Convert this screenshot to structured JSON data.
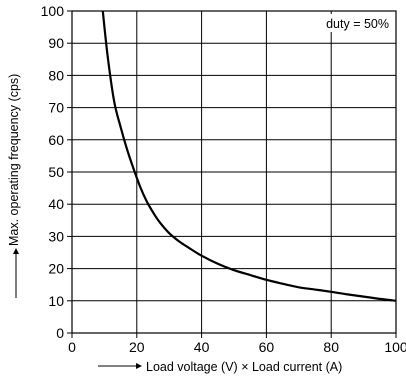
{
  "chart_data": {
    "type": "line",
    "title": "",
    "xlabel": "Load voltage (V) × Load current (A)",
    "ylabel": "Max. operating frequency (cps)",
    "xlim": [
      0,
      100
    ],
    "ylim": [
      0,
      100
    ],
    "x_ticks": [
      0,
      20,
      40,
      60,
      80,
      100
    ],
    "y_ticks": [
      0,
      10,
      20,
      30,
      40,
      50,
      60,
      70,
      80,
      90,
      100
    ],
    "x_tick_labels": [
      "0",
      "20",
      "40",
      "60",
      "80",
      "100"
    ],
    "y_tick_labels": [
      "0",
      "10",
      "20",
      "30",
      "40",
      "50",
      "60",
      "70",
      "80",
      "90",
      "100"
    ],
    "grid": true,
    "annotation": "duty = 50%",
    "annotation_position": "top-right",
    "line_color": "#000000",
    "series": [
      {
        "x": [
          9.5,
          11,
          13,
          15,
          17,
          19,
          21,
          23,
          25,
          27,
          30,
          33,
          36,
          40,
          45,
          50,
          55,
          60,
          65,
          70,
          75,
          80,
          85,
          90,
          95,
          100
        ],
        "values": [
          100,
          86,
          72,
          64,
          57,
          51,
          45.5,
          41,
          37.5,
          34.5,
          31,
          28.5,
          26.5,
          24,
          21.5,
          19.5,
          18,
          16.5,
          15.3,
          14.2,
          13.5,
          12.8,
          12,
          11.3,
          10.6,
          10
        ]
      }
    ]
  }
}
